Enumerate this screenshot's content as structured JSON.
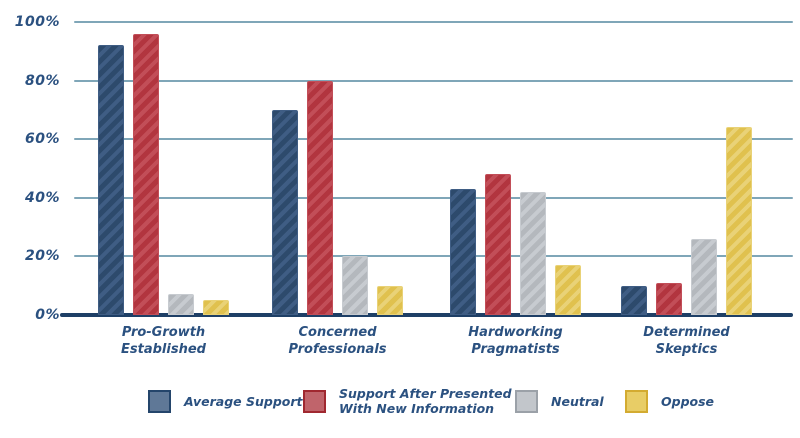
{
  "colors": {
    "background": "#ffffff",
    "text": "#2b5180",
    "gridline": "#7fa6b8",
    "axis": "#1e3f66"
  },
  "chart_data": {
    "type": "bar",
    "title": "",
    "xlabel": "",
    "ylabel": "",
    "grid": true,
    "legend_position": "bottom",
    "hatch": "diagonal stripes",
    "categories": [
      "Pro-Growth Established",
      "Concerned Professionals",
      "Hardworking Pragmatists",
      "Determined Skeptics"
    ],
    "category_label_lines": [
      [
        "Pro-Growth",
        "Established"
      ],
      [
        "Concerned",
        "Professionals"
      ],
      [
        "Hardworking",
        "Pragmatists"
      ],
      [
        "Determined",
        "Skeptics"
      ]
    ],
    "series": [
      {
        "name": "Average Support",
        "legend_label_lines": [
          "Average Support"
        ],
        "values": [
          92,
          70,
          43,
          10
        ],
        "bar_color": "#2d4a6c",
        "stripe_color": "#3f5d84",
        "legend_fill": "#5f7897",
        "legend_border": "#24456b"
      },
      {
        "name": "Support After Presented With New Information",
        "legend_label_lines": [
          "Support After Presented",
          "With New Information"
        ],
        "values": [
          96,
          80,
          48,
          11
        ],
        "bar_color": "#b2353f",
        "stripe_color": "#c24e58",
        "legend_fill": "#c0646b",
        "legend_border": "#a02830"
      },
      {
        "name": "Neutral",
        "legend_label_lines": [
          "Neutral"
        ],
        "values": [
          7,
          20,
          42,
          26
        ],
        "bar_color": "#b4b8bd",
        "stripe_color": "#c7cbd0",
        "legend_fill": "#c2c6cb",
        "legend_border": "#9ba1a8"
      },
      {
        "name": "Oppose",
        "legend_label_lines": [
          "Oppose"
        ],
        "values": [
          5,
          10,
          17,
          64
        ],
        "bar_color": "#e0c14e",
        "stripe_color": "#e9d277",
        "legend_fill": "#e8cd66",
        "legend_border": "#d3ab31"
      }
    ],
    "y_axis": {
      "ticks": [
        "0%",
        "20%",
        "40%",
        "60%",
        "80%",
        "100%"
      ],
      "tick_values": [
        0,
        20,
        40,
        60,
        80,
        100
      ],
      "min": 0,
      "max": 100,
      "unit": "%"
    }
  }
}
